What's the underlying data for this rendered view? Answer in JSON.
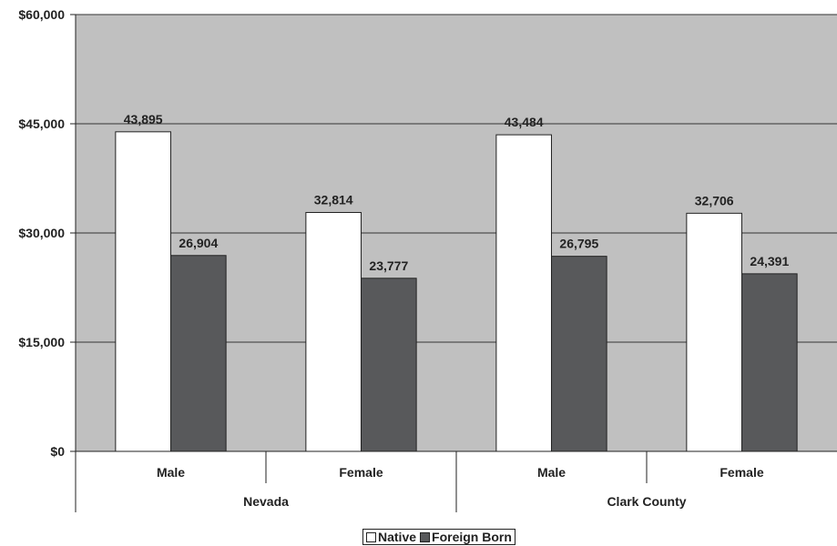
{
  "chart_data": {
    "type": "bar",
    "groups": [
      {
        "label": "Nevada",
        "categories": [
          "Male",
          "Female"
        ]
      },
      {
        "label": "Clark County",
        "categories": [
          "Male",
          "Female"
        ]
      }
    ],
    "series": [
      {
        "name": "Native",
        "color": "#ffffff",
        "values": [
          43895,
          32814,
          43484,
          32706
        ],
        "labels": [
          "43,895",
          "32,814",
          "43,484",
          "32,706"
        ]
      },
      {
        "name": "Foreign Born",
        "color": "#58595b",
        "values": [
          26904,
          23777,
          26795,
          24391
        ],
        "labels": [
          "26,904",
          "23,777",
          "26,795",
          "24,391"
        ]
      }
    ],
    "ylim": [
      0,
      60000
    ],
    "yticks": [
      0,
      15000,
      30000,
      45000,
      60000
    ],
    "ytick_labels": [
      "$0",
      "$15,000",
      "$30,000",
      "$45,000",
      "$60,000"
    ],
    "plot_background": "#c0c0c0",
    "grid": true,
    "legend_position": "bottom-center"
  }
}
